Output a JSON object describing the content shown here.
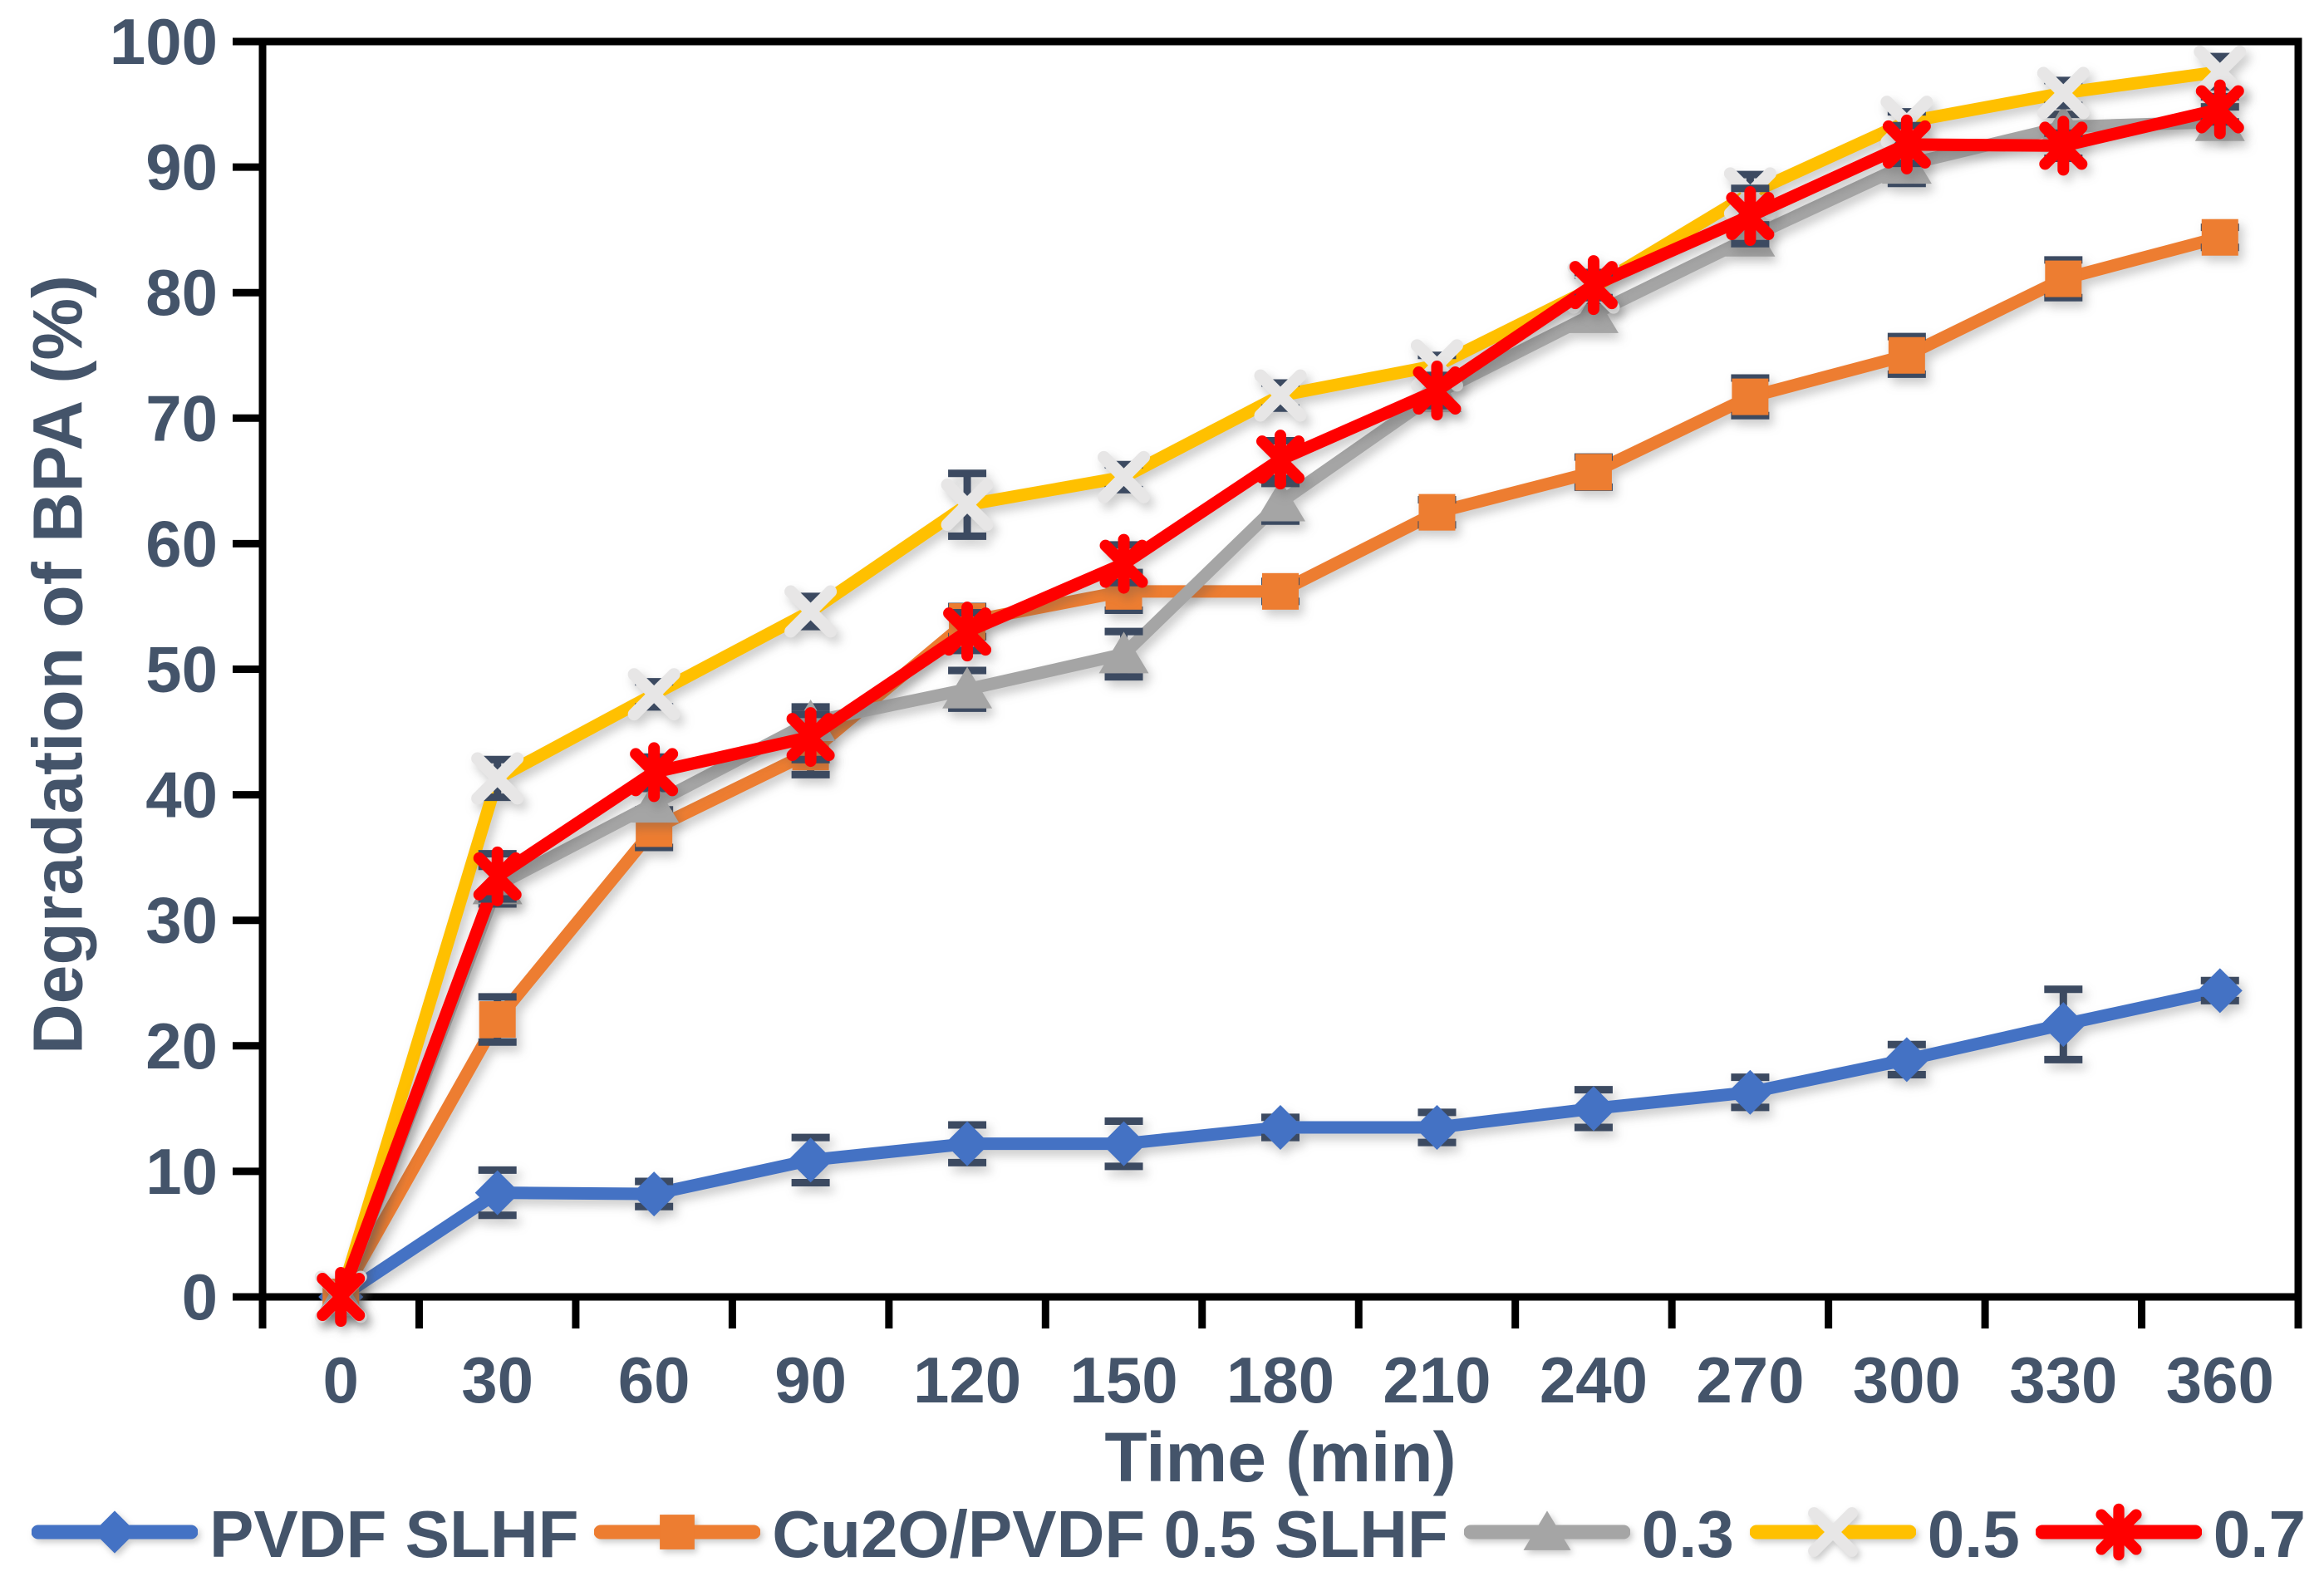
{
  "page": {
    "background": "#FFFFFF"
  },
  "chart_data": {
    "type": "line",
    "title": "",
    "xlabel": "Time (min)",
    "ylabel": "Degradation of BPA (%)",
    "x": [
      0,
      30,
      60,
      90,
      120,
      150,
      180,
      210,
      240,
      270,
      300,
      330,
      360
    ],
    "ylim": [
      0,
      100
    ],
    "ytick_step": 10,
    "grid": false,
    "legend_position": "bottom",
    "axis_color": "#000000",
    "label_color": "#44546A",
    "error_bar_color": "#3C4A61",
    "series": [
      {
        "name": "PVDF SLHF",
        "color": "#4472C4",
        "marker": "diamond",
        "values": [
          0,
          8.3,
          8.2,
          10.9,
          12.2,
          12.2,
          13.5,
          13.5,
          15.0,
          16.3,
          18.9,
          21.7,
          24.4
        ],
        "errors": [
          0,
          1.8,
          1.0,
          1.8,
          1.5,
          1.8,
          0.8,
          1.2,
          1.5,
          1.2,
          1.2,
          2.8,
          0.8
        ]
      },
      {
        "name": "Cu2O/PVDF 0.5 SLHF",
        "color": "#ED7D31",
        "marker": "square",
        "values": [
          0,
          22.1,
          37.3,
          43.4,
          53.8,
          56.2,
          56.2,
          62.5,
          65.7,
          71.7,
          75.0,
          81.1,
          84.4
        ],
        "errors": [
          0,
          1.8,
          1.5,
          1.8,
          1.2,
          1.5,
          0.8,
          1.0,
          1.2,
          1.5,
          1.5,
          1.5,
          0.8
        ]
      },
      {
        "name": "0.3",
        "color": "#A5A5A5",
        "marker": "triangle",
        "values": [
          0,
          32.8,
          39.3,
          45.8,
          48.4,
          51.2,
          63.3,
          72.0,
          78.3,
          84.4,
          90.2,
          93.2,
          93.6
        ],
        "errors": [
          0,
          1.5,
          1.2,
          1.2,
          1.5,
          1.8,
          1.5,
          1.0,
          1.2,
          1.0,
          1.5,
          1.0,
          1.2
        ]
      },
      {
        "name": "0.5",
        "color": "#FFC000",
        "marker": "x",
        "marker_color": "#E7E6E6",
        "values": [
          0,
          41.3,
          48.0,
          54.6,
          63.1,
          65.3,
          71.8,
          74.2,
          80.4,
          87.9,
          93.6,
          95.9,
          97.6
        ],
        "errors": [
          0,
          1.5,
          1.0,
          1.2,
          2.5,
          1.0,
          1.0,
          0.8,
          1.0,
          1.5,
          0.8,
          1.0,
          1.2
        ]
      },
      {
        "name": "0.7",
        "color": "#FF0000",
        "marker": "asterisk",
        "marker_color": "#FF0000",
        "values": [
          0,
          33.5,
          41.8,
          44.6,
          53.0,
          58.4,
          66.7,
          72.2,
          80.6,
          86.1,
          91.8,
          91.7,
          94.6
        ],
        "errors": [
          0,
          1.8,
          1.2,
          1.8,
          1.5,
          1.5,
          1.5,
          1.2,
          1.0,
          2.2,
          1.5,
          1.0,
          1.0
        ]
      }
    ]
  }
}
